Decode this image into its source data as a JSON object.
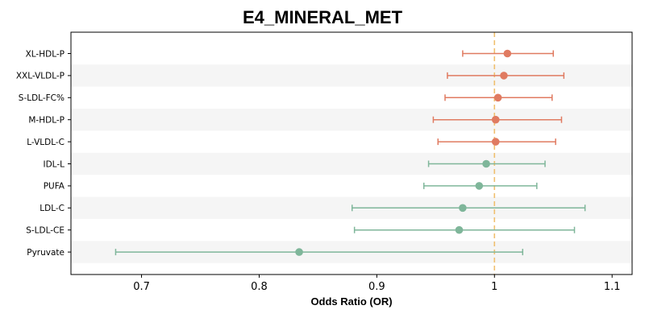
{
  "chart_data": {
    "type": "forest",
    "title": "E4_MINERAL_MET",
    "xlabel": "Odds Ratio (OR)",
    "ylabel": "",
    "xlim": [
      0.64,
      1.117
    ],
    "xticks": [
      0.7,
      0.8,
      0.9,
      1.0,
      1.1
    ],
    "xtick_labels": [
      "0.7",
      "0.8",
      "0.9",
      "1",
      "1.1"
    ],
    "reference_line": 1.0,
    "alternating_row_shading": true,
    "grid": false,
    "categories": [
      "XL-HDL-P",
      "XXL-VLDL-P",
      "S-LDL-FC%",
      "M-HDL-P",
      "L-VLDL-C",
      "IDL-L",
      "PUFA",
      "LDL-C",
      "S-LDL-CE",
      "Pyruvate"
    ],
    "or": [
      1.011,
      1.008,
      1.003,
      1.001,
      1.001,
      0.993,
      0.987,
      0.973,
      0.97,
      0.834
    ],
    "ci_lower": [
      0.973,
      0.96,
      0.958,
      0.948,
      0.952,
      0.944,
      0.94,
      0.879,
      0.881,
      0.678
    ],
    "ci_upper": [
      1.05,
      1.059,
      1.049,
      1.057,
      1.052,
      1.043,
      1.036,
      1.077,
      1.068,
      1.024
    ],
    "colors": {
      "above_one": "#e07b61",
      "below_one": "#7fb69a",
      "reference_line": "#f0c070",
      "row_shade": "#f5f5f5"
    }
  }
}
